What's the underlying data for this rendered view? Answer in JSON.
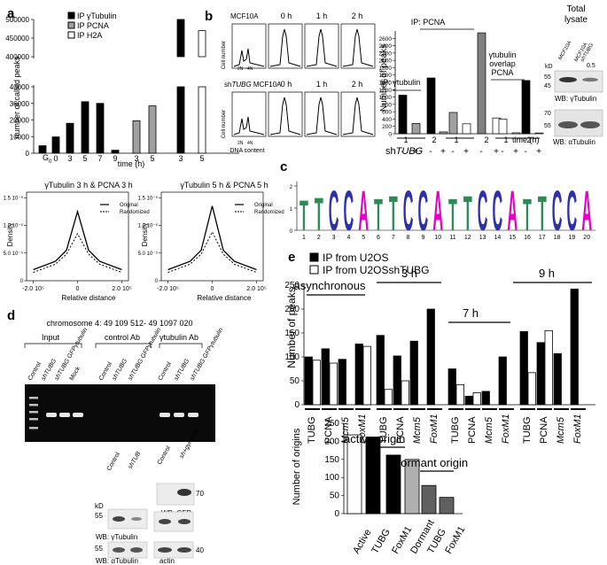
{
  "panel_labels": {
    "a": "a",
    "b": "b",
    "c": "c",
    "d": "d",
    "e": "e"
  },
  "a": {
    "legend": [
      "IP γTubulin",
      "IP PCNA",
      "IP H2A"
    ],
    "ylabel": "number of called peaks",
    "xlabel": "time (h)",
    "g0": "G",
    "yticks": [
      "0",
      "10000",
      "20000",
      "30000",
      "40000",
      "400000",
      "450000",
      "500000"
    ]
  },
  "density": {
    "title1": "γTubulin 3 h & PCNA 3 h",
    "title2": "γTubulin 5 h & PCNA 5 h",
    "ylabel": "Density",
    "xlabel": "Relative distance",
    "legend_original": "Original",
    "legend_randomized": "Randomized",
    "yticks": [
      "0",
      "5.0 10⁻⁵",
      "1.0 10⁻⁵",
      "1.5 10⁻⁵"
    ],
    "xticks": [
      "-2.0 10⁵",
      "0",
      "2.0 10⁵"
    ]
  },
  "b": {
    "cell1": "MCF10A",
    "cell2_prefix": "sh",
    "cell2_gene": "TUBG",
    "cell2_suffix": " MCF10A",
    "times": [
      "0 h",
      "1 h",
      "2 h"
    ],
    "axis_y": "Cell number",
    "dna": "DNA content",
    "n2": "2N",
    "n4": "4N",
    "ip_pcna": "IP: PCNA",
    "ip_gtub": "IP: γtubulin",
    "overlap": [
      "γtubulin",
      "overlap",
      "PCNA"
    ],
    "ylabel": "Number of peaks",
    "yticks": [
      "0",
      "200",
      "400",
      "600",
      "800",
      "1000",
      "1200",
      "1400",
      "1600",
      "1800",
      "2000",
      "2200",
      "2400",
      "2600"
    ],
    "xticks": [
      "1",
      "2",
      "1",
      "2",
      "1",
      "2"
    ],
    "time_label": "time (h)",
    "sh_label_prefix": "sh",
    "sh_label_gene": "TUBG",
    "signs": [
      "-",
      "+",
      "-",
      "+",
      "-",
      "+",
      "-",
      "+",
      "-",
      "+",
      "-",
      "+"
    ],
    "total": "Total",
    "lysate": "lysate",
    "lane1": "MCF10A",
    "lane2a": "MCF10A",
    "lane2b": "shTUBG",
    "kd": "kD",
    "ratio": "0.5",
    "wb1_mw": [
      "55",
      "45"
    ],
    "wb2_mw": [
      "70",
      "55"
    ],
    "wb1": "WB: γTubulin",
    "wb2": "WB: αTubulin"
  },
  "c": {
    "positions": [
      "1",
      "2",
      "3",
      "4",
      "5",
      "6",
      "7",
      "8",
      "9",
      "10",
      "11",
      "12",
      "13",
      "14",
      "15",
      "16",
      "17",
      "18",
      "19",
      "20"
    ],
    "letters": [
      "T",
      "T",
      "C",
      "C",
      "A",
      "T",
      "T",
      "C",
      "C",
      "A",
      "T",
      "T",
      "C",
      "C",
      "A",
      "T",
      "T",
      "C",
      "C",
      "A"
    ],
    "yticks": [
      "0",
      "1",
      "2"
    ]
  },
  "d": {
    "title": "chromosome 4: 49 109 512- 49 1097 020",
    "groups": [
      "Input",
      "control Ab",
      "γtubulin Ab"
    ],
    "lanes": [
      "Control",
      "shTUBG",
      "shTUBG GFPγtubulin",
      "Mock",
      "Control",
      "shTUBG",
      "shTUBG GFPγtubulin",
      "Control",
      "shTUBG",
      "shTUBG GFPγtubulin"
    ],
    "kd": "kD",
    "wb_gtub": "WB: γTubulin",
    "wb_gfp": "WB: GFP",
    "wb_atub": "WB: αTubulin",
    "wb_actin": "actin",
    "mw55": "55",
    "mw55b": "55",
    "mw70": "70",
    "mw40": "40",
    "blot_lanes": [
      "Control",
      "shTUB",
      "Control",
      "sh+gγresist"
    ]
  },
  "e": {
    "legend": [
      "IP from U2OS",
      "IP from U2OSshTUBG"
    ],
    "ylabel": "Number of peaks",
    "yticks": [
      "0",
      "50",
      "100",
      "150",
      "200",
      "250"
    ],
    "groups": [
      "asynchronous",
      "3 h",
      "7 h",
      "9 h"
    ],
    "cats": [
      "TUBG",
      "PCNA",
      "Mcm5",
      "FoxM1",
      "TUBG",
      "PCNA",
      "Mcm5",
      "FoxM1",
      "TUBG",
      "PCNA",
      "Mcm5",
      "FoxM1",
      "TUBG",
      "PCNA",
      "Mcm5",
      "FoxM1"
    ],
    "ylabel2": "Number of origins",
    "yticks2": [
      "0",
      "50",
      "100",
      "150",
      "200",
      "250"
    ],
    "active_label": "active origin",
    "dormant_label": "dormant origin",
    "cats2": [
      "Active",
      "TUBG",
      "FoxM1",
      "Dormant",
      "TUBG",
      "FoxM1"
    ]
  },
  "chart_data": [
    {
      "type": "bar",
      "title": "",
      "ylabel": "number of called peaks",
      "xlabel": "time (h)",
      "categories": [
        "G0",
        "0",
        "3",
        "5",
        "7",
        "9",
        "3",
        "5",
        "3",
        "5"
      ],
      "series": [
        {
          "name": "IP γTubulin",
          "values": [
            4500,
            9800,
            18000,
            31000,
            30000,
            1800,
            null,
            null,
            500000,
            null
          ]
        },
        {
          "name": "IP PCNA",
          "values": [
            null,
            null,
            null,
            null,
            null,
            null,
            19500,
            28500,
            null,
            null
          ]
        },
        {
          "name": "IP H2A",
          "values": [
            null,
            null,
            null,
            null,
            null,
            null,
            null,
            null,
            null,
            470000
          ]
        }
      ],
      "bar_series": [
        0,
        0,
        0,
        0,
        0,
        0,
        1,
        1,
        0,
        2
      ],
      "colors": [
        "#000000",
        "#a0a0a0",
        "#ffffff"
      ],
      "ylim": [
        0,
        500000
      ],
      "broken_axis": true
    },
    {
      "type": "line",
      "title": "γTubulin 3 h & PCNA 3 h",
      "xlabel": "Relative distance",
      "ylabel": "Density",
      "series": [
        {
          "name": "Original"
        },
        {
          "name": "Randomized"
        }
      ],
      "x": [
        -200000,
        -100000,
        -50000,
        0,
        50000,
        100000,
        200000
      ],
      "y_original": [
        2e-06,
        3.5e-06,
        5.5e-06,
        1.25e-05,
        5.5e-06,
        3.5e-06,
        2e-06
      ],
      "y_randomized": [
        1.5e-06,
        3e-06,
        4.8e-06,
        8.5e-06,
        4.8e-06,
        3e-06,
        1.5e-06
      ]
    },
    {
      "type": "line",
      "title": "γTubulin 5 h & PCNA 5 h",
      "xlabel": "Relative distance",
      "ylabel": "Density",
      "series": [
        {
          "name": "Original"
        },
        {
          "name": "Randomized"
        }
      ],
      "x": [
        -200000,
        -100000,
        -50000,
        0,
        50000,
        100000,
        200000
      ],
      "y_original": [
        2e-06,
        3.5e-06,
        5.5e-06,
        1.35e-05,
        5.5e-06,
        3.5e-06,
        2e-06
      ],
      "y_randomized": [
        1.5e-06,
        3e-06,
        4.8e-06,
        8.8e-06,
        4.8e-06,
        3e-06,
        1.5e-06
      ]
    },
    {
      "type": "bar",
      "title": "",
      "ylabel": "Number of peaks",
      "xlabel": "time (h)",
      "categories": [
        "γtubulin 1 -",
        "γtubulin 1 +",
        "γtubulin 2 -",
        "γtubulin 2 +",
        "PCNA 1 -",
        "PCNA 1 +",
        "PCNA 2 -",
        "PCNA 2 +",
        "overlap 1 -",
        "overlap 1 +",
        "overlap 2 -",
        "overlap 2 +"
      ],
      "values": [
        1050,
        280,
        1520,
        50,
        580,
        270,
        2750,
        430,
        400,
        25,
        1450,
        20
      ],
      "colors": [
        "#000000",
        "#a0a0a0",
        "#000000",
        "#a0a0a0",
        "#a0a0a0",
        "#ffffff",
        "#808080",
        "#ffffff",
        "#ffffff",
        "#ffffff",
        "#000000",
        "#ffffff"
      ],
      "ylim": [
        0,
        2800
      ]
    },
    {
      "type": "bar",
      "title": "",
      "ylabel": "Number of peaks",
      "categories": [
        "async TUBG",
        "async PCNA",
        "async Mcm5",
        "async FoxM1",
        "3 h TUBG",
        "3 h PCNA",
        "3 h Mcm5",
        "3 h FoxM1",
        "7 h TUBG",
        "7 h PCNA",
        "7 h Mcm5",
        "7 h FoxM1",
        "9 h TUBG",
        "9 h PCNA",
        "9 h Mcm5",
        "9 h FoxM1"
      ],
      "series": [
        {
          "name": "IP from U2OS",
          "values": [
            100,
            117,
            95,
            127,
            145,
            102,
            133,
            200,
            75,
            18,
            28,
            100,
            153,
            130,
            107,
            242
          ]
        },
        {
          "name": "IP from U2OSshTUBG",
          "values": [
            93,
            87,
            null,
            122,
            32,
            50,
            null,
            null,
            42,
            25,
            null,
            null,
            67,
            155,
            null,
            null
          ]
        }
      ],
      "ylim": [
        0,
        250
      ]
    },
    {
      "type": "bar",
      "title": "",
      "ylabel": "Number of origins",
      "categories": [
        "Active",
        "TUBG",
        "FoxM1",
        "Dormant",
        "TUBG",
        "FoxM1"
      ],
      "values": [
        218,
        212,
        162,
        150,
        78,
        45
      ],
      "colors": [
        "#ffffff",
        "#000000",
        "#000000",
        "#b0b0b0",
        "#606060",
        "#606060"
      ],
      "ylim": [
        0,
        250
      ]
    }
  ]
}
